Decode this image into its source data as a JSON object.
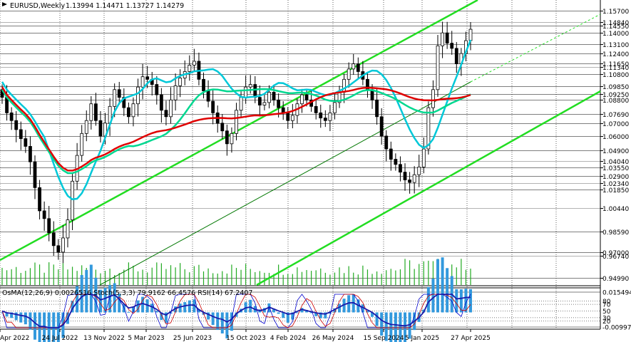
{
  "header": {
    "symbol": "EURUSD,Weekly",
    "ohlc": "1.13994 1.14471 1.13727 1.14279"
  },
  "indicator_header": "OsMA(12,26,9) 0.0026516  Stoch(5,3,3) 79.9162 66.4576  RSI(14) 67.2407",
  "colors": {
    "background": "#ffffff",
    "candle_up": "#000000",
    "candle_down": "#000000",
    "ma_fast": "#00c8d8",
    "ma_mid": "#00d890",
    "ma_slow": "#e00000",
    "channel": "#22dd22",
    "trend_thin": "#007700",
    "volume": "#22aa22",
    "osma": "#3399dd",
    "stoch_main": "#0000cc",
    "stoch_signal": "#cc0000",
    "rsi": "#1a1aaa"
  },
  "chart_data": {
    "type": "candlestick",
    "price_levels": [
      "1.15700",
      "1.14840",
      "1.14550",
      "1.14000",
      "1.13100",
      "1.12400",
      "1.11650",
      "1.11340",
      "1.10800",
      "1.09850",
      "1.09250",
      "1.08800",
      "1.07690",
      "1.07000",
      "1.06000",
      "1.04900",
      "1.04040",
      "1.03550",
      "1.02900",
      "1.02340",
      "1.01850",
      "1.00440",
      "0.98590",
      "0.97000",
      "0.96740",
      "0.94990"
    ],
    "price_range": [
      0.9445,
      1.1655
    ],
    "x_tick_labels": [
      "Apr 2022",
      "24 Jul 2022",
      "13 Nov 2022",
      "5 Mar 2023",
      "25 Jun 2023",
      "15 Oct 2023",
      "4 Feb 2024",
      "26 May 2024",
      "15 Sep 2024",
      "5 Jan 2025",
      "27 Apr 2025"
    ],
    "closes": [
      1.09,
      1.078,
      1.072,
      1.065,
      1.058,
      1.052,
      1.04,
      1.02,
      1.002,
      0.996,
      0.985,
      0.975,
      0.97,
      0.981,
      0.995,
      1.025,
      1.045,
      1.062,
      1.072,
      1.085,
      1.072,
      1.06,
      1.07,
      1.083,
      1.096,
      1.09,
      1.082,
      1.075,
      1.085,
      1.098,
      1.106,
      1.104,
      1.1,
      1.092,
      1.08,
      1.075,
      1.088,
      1.099,
      1.105,
      1.11,
      1.115,
      1.118,
      1.104,
      1.095,
      1.087,
      1.078,
      1.07,
      1.064,
      1.054,
      1.062,
      1.08,
      1.09,
      1.098,
      1.1,
      1.09,
      1.084,
      1.086,
      1.094,
      1.088,
      1.082,
      1.078,
      1.072,
      1.076,
      1.085,
      1.092,
      1.088,
      1.083,
      1.078,
      1.074,
      1.072,
      1.078,
      1.086,
      1.094,
      1.104,
      1.112,
      1.116,
      1.11,
      1.104,
      1.096,
      1.088,
      1.075,
      1.06,
      1.05,
      1.042,
      1.038,
      1.032,
      1.026,
      1.024,
      1.03,
      1.036,
      1.05,
      1.082,
      1.096,
      1.13,
      1.14,
      1.132,
      1.128,
      1.116,
      1.124,
      1.134,
      1.1428
    ],
    "volume_max_label": "",
    "indicator_levels": [
      "0.0154942",
      "80",
      "70",
      "50",
      "30",
      "20",
      "-0.0099797"
    ],
    "osma_range": [
      -0.0099797,
      0.0154942
    ]
  }
}
